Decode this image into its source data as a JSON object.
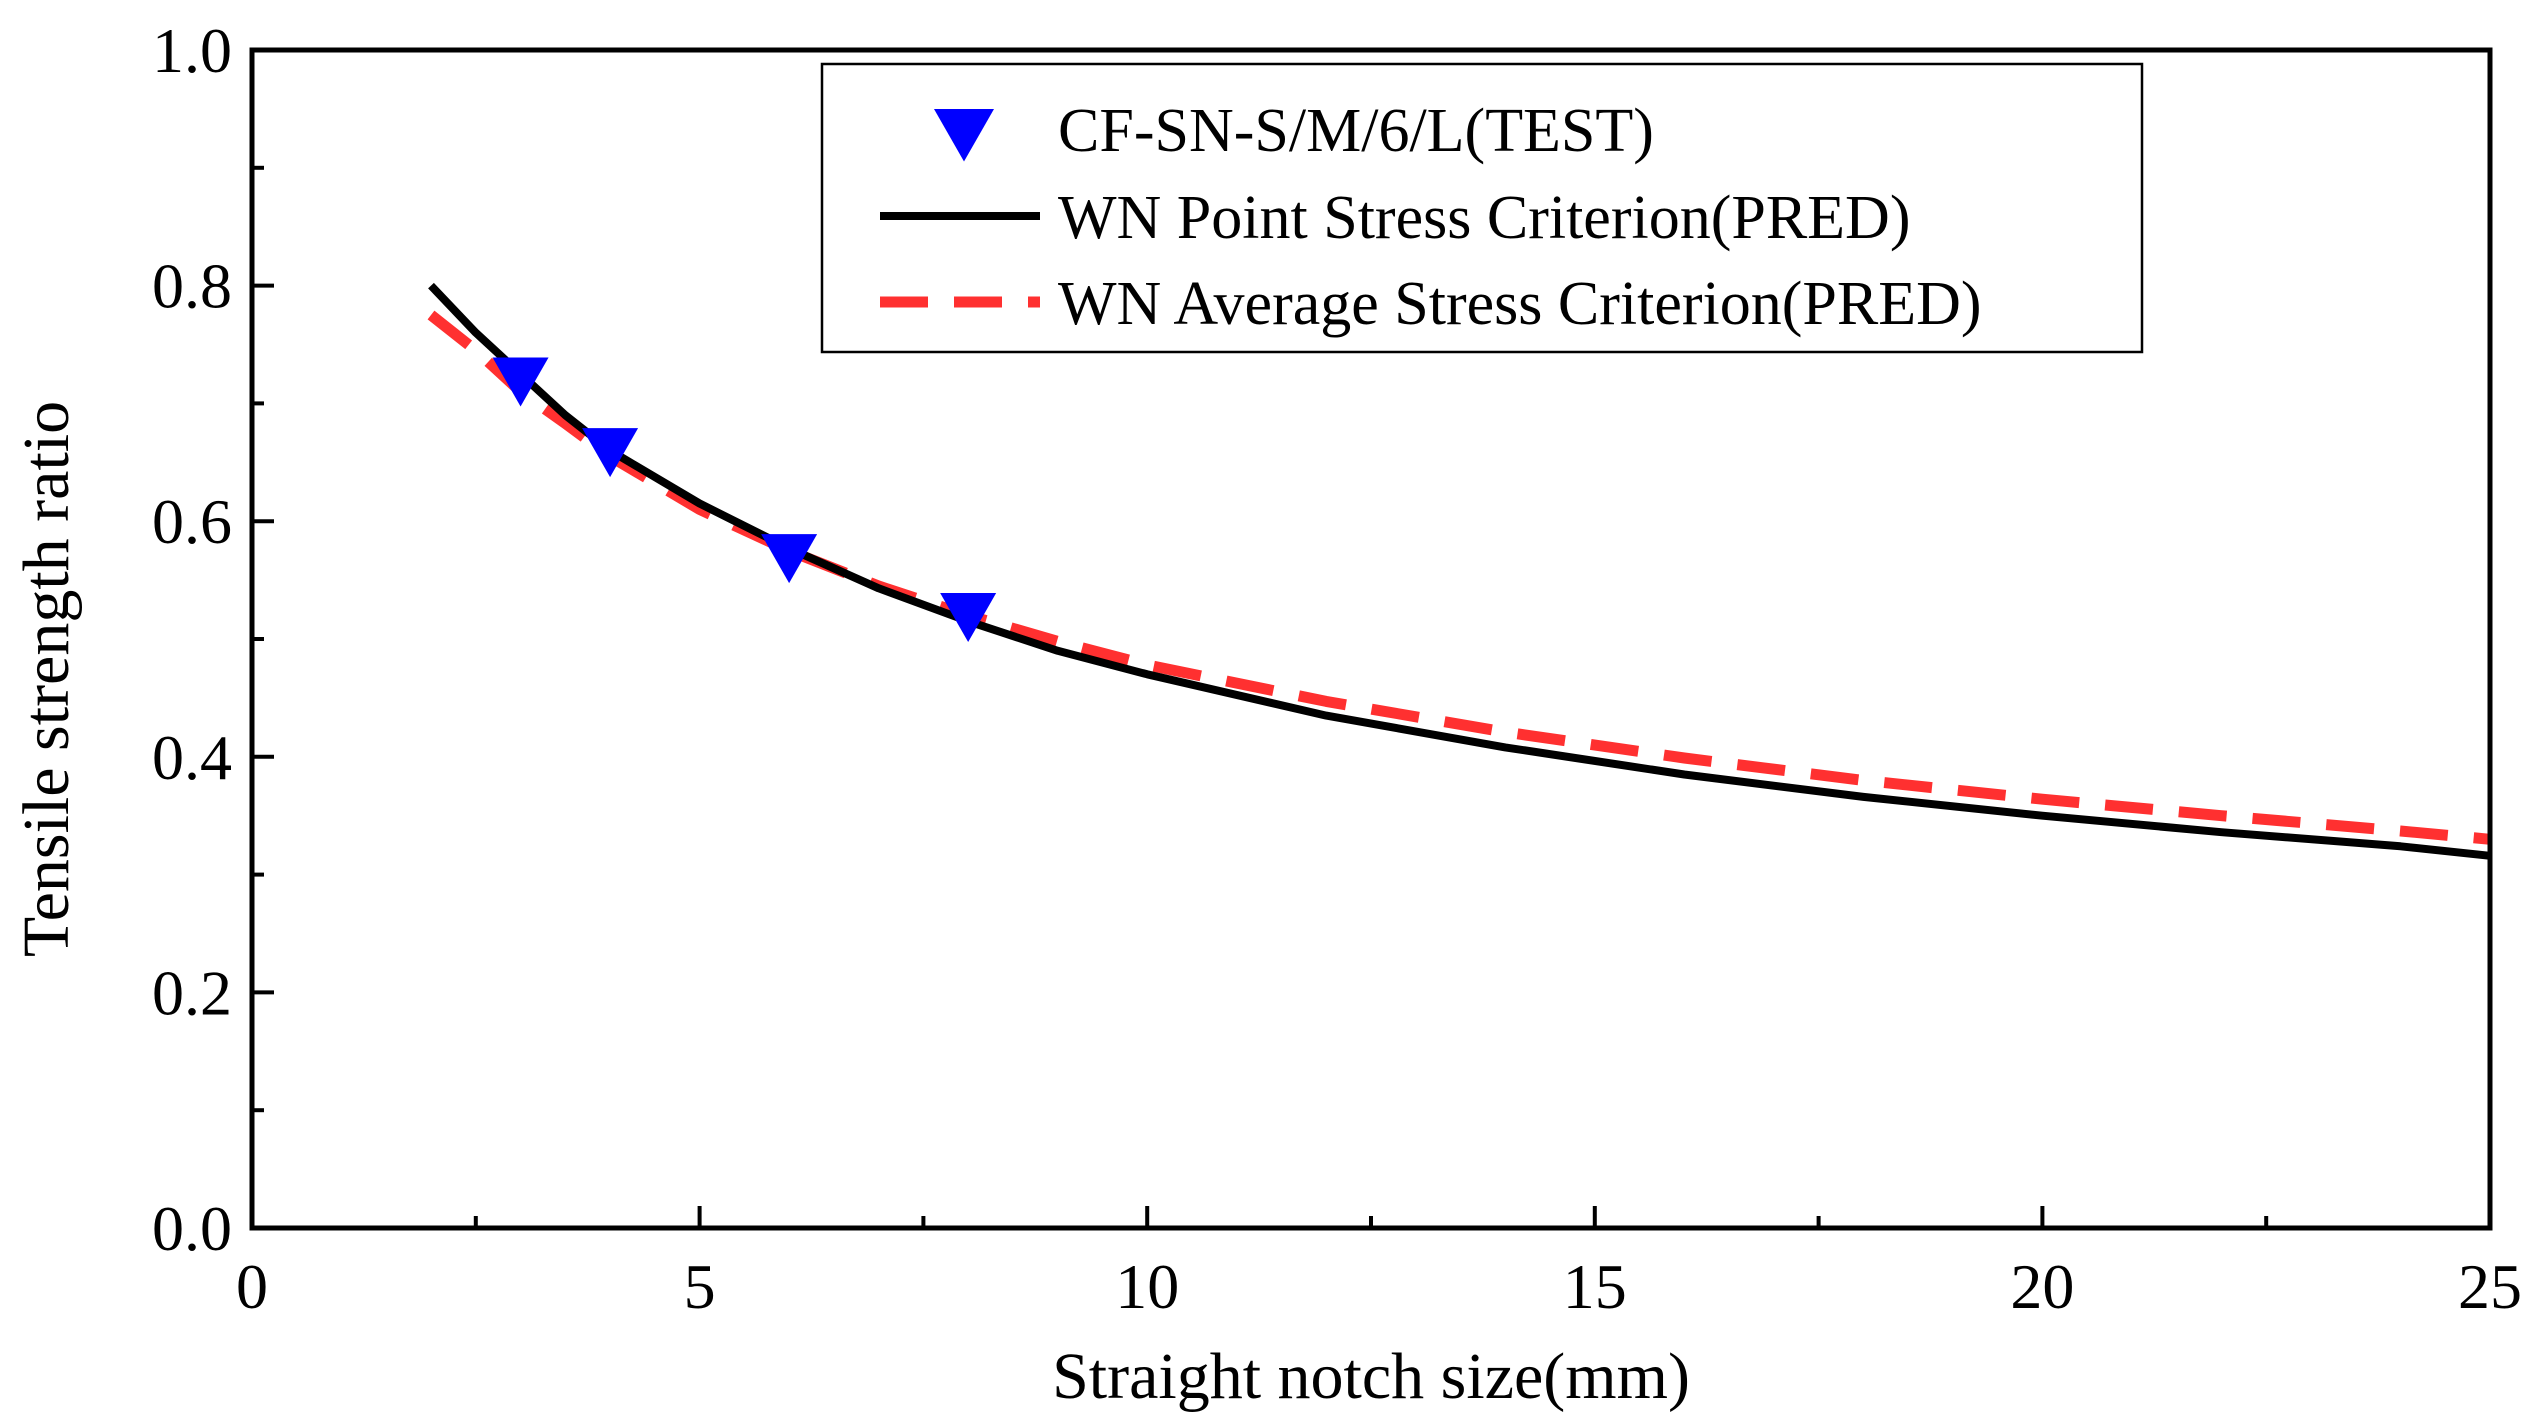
{
  "chart_data": {
    "type": "line",
    "title": "",
    "xlabel": "Straight notch size(mm)",
    "ylabel": "Tensile strength ratio",
    "xlim": [
      0,
      25
    ],
    "ylim": [
      0.0,
      1.0
    ],
    "x_ticks": [
      0,
      5,
      10,
      15,
      20,
      25
    ],
    "x_tick_labels": [
      "0",
      "5",
      "10",
      "15",
      "20",
      "25"
    ],
    "y_ticks": [
      0.0,
      0.2,
      0.4,
      0.6,
      0.8,
      1.0
    ],
    "y_tick_labels": [
      "0.0",
      "0.2",
      "0.4",
      "0.6",
      "0.8",
      "1.0"
    ],
    "grid": false,
    "legend_position": "top-center",
    "series": [
      {
        "name": "CF-SN-S/M/6/L(TEST)",
        "kind": "scatter",
        "marker": "triangle-down",
        "color": "#0000ff",
        "x": [
          3,
          4,
          6,
          8
        ],
        "y": [
          0.72,
          0.66,
          0.57,
          0.52
        ]
      },
      {
        "name": "WN Point Stress Criterion(PRED)",
        "kind": "line",
        "style": "solid",
        "color": "#000000",
        "x": [
          2,
          2.5,
          3,
          3.5,
          4,
          5,
          6,
          7,
          8,
          9,
          10,
          12,
          14,
          16,
          18,
          20,
          22,
          24,
          25
        ],
        "y": [
          0.8,
          0.76,
          0.725,
          0.69,
          0.66,
          0.615,
          0.577,
          0.543,
          0.515,
          0.49,
          0.47,
          0.435,
          0.408,
          0.385,
          0.366,
          0.35,
          0.336,
          0.324,
          0.316
        ]
      },
      {
        "name": "WN Average Stress Criterion(PRED)",
        "kind": "line",
        "style": "dashed",
        "color": "#ff3030",
        "x": [
          2,
          2.5,
          3,
          3.5,
          4,
          5,
          6,
          7,
          8,
          9,
          10,
          12,
          14,
          16,
          18,
          20,
          22,
          24,
          25
        ],
        "y": [
          0.775,
          0.745,
          0.71,
          0.683,
          0.655,
          0.61,
          0.575,
          0.545,
          0.52,
          0.498,
          0.478,
          0.447,
          0.421,
          0.399,
          0.38,
          0.364,
          0.35,
          0.337,
          0.33
        ]
      }
    ]
  }
}
